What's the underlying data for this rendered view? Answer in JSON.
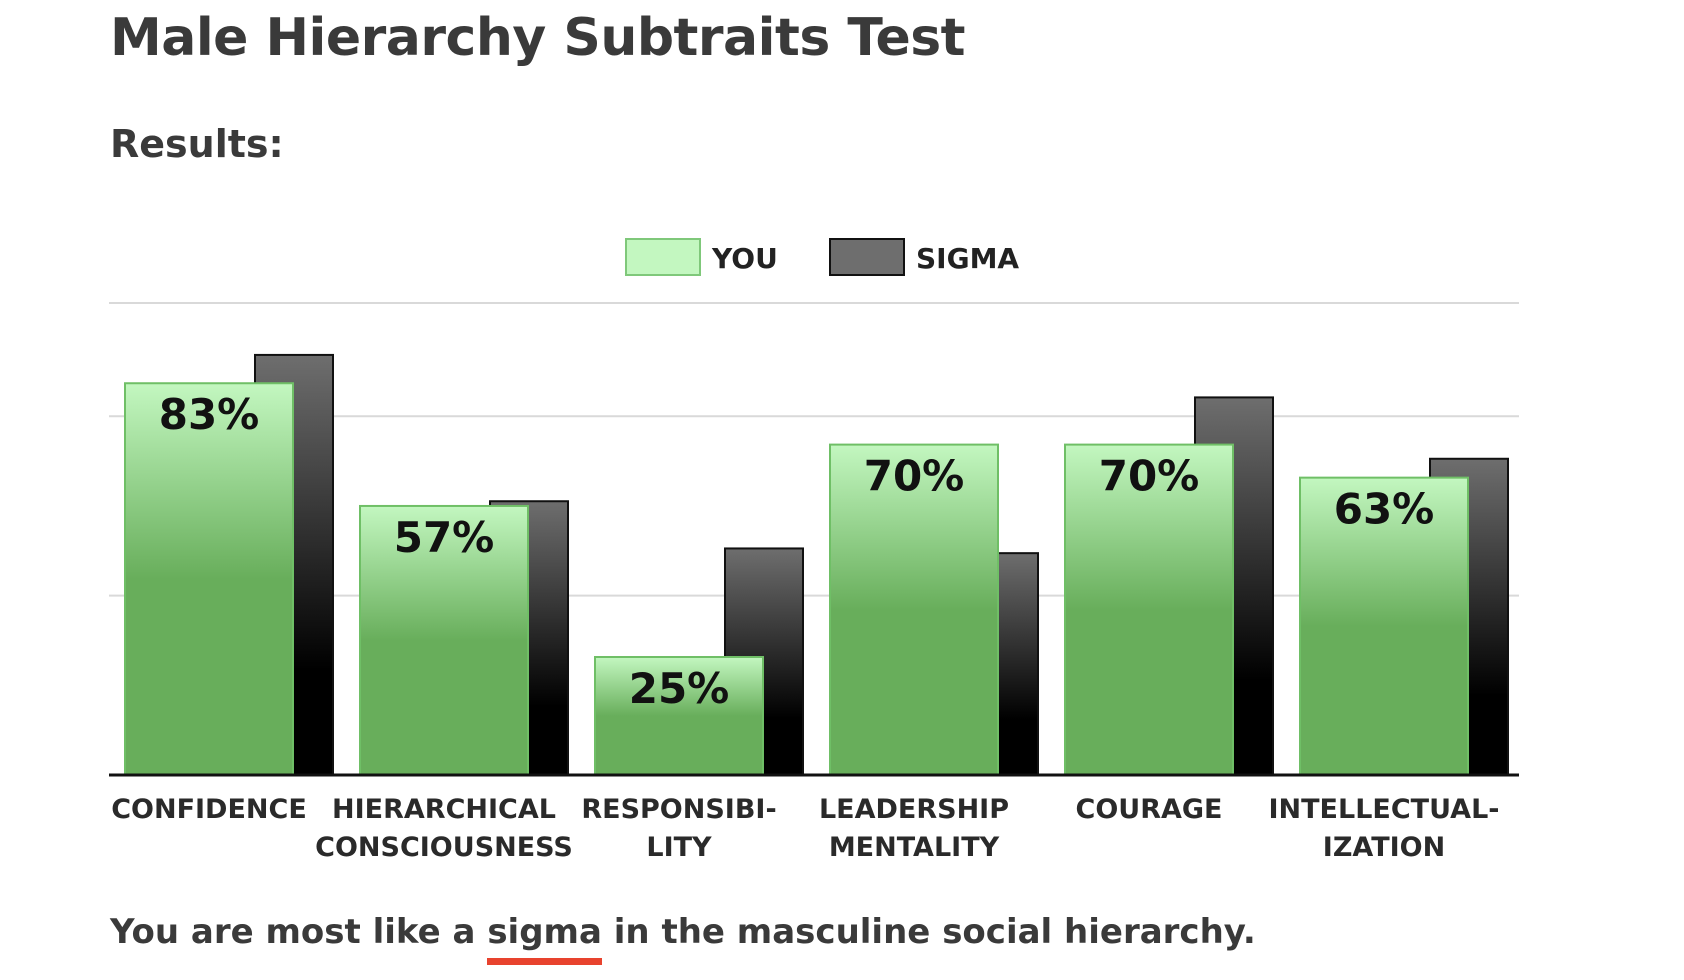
{
  "page": {
    "title": "Male Hierarchy Subtraits Test",
    "results_heading": "Results:"
  },
  "summary": {
    "prefix": "You are most like a ",
    "type": "sigma",
    "suffix": " in the masculine social hierarchy."
  },
  "colors": {
    "you_light": "#c3f7c0",
    "you_dark": "#68ae5b",
    "sigma_light": "#6e6e6e",
    "sigma_dark": "#000000",
    "gridline": "#d9d9d9",
    "axis": "#111111",
    "underline": "#e8432e"
  },
  "chart_data": {
    "type": "bar",
    "categories": [
      [
        "CONFIDENCE"
      ],
      [
        "HIERARCHICAL",
        "CONSCIOUSNESS"
      ],
      [
        "RESPONSIBI-",
        "LITY"
      ],
      [
        "LEADERSHIP",
        "MENTALITY"
      ],
      [
        "COURAGE"
      ],
      [
        "INTELLECTUAL-",
        "IZATION"
      ]
    ],
    "series": [
      {
        "name": "YOU",
        "values": [
          83,
          57,
          25,
          70,
          70,
          63
        ],
        "labels": [
          "83%",
          "57%",
          "25%",
          "70%",
          "70%",
          "63%"
        ]
      },
      {
        "name": "SIGMA",
        "values": [
          89,
          58,
          48,
          47,
          80,
          67
        ]
      }
    ],
    "ylim": [
      0,
      100
    ],
    "gridlines": [
      38,
      76,
      100
    ],
    "legend_position": "top-center",
    "grid": true
  }
}
